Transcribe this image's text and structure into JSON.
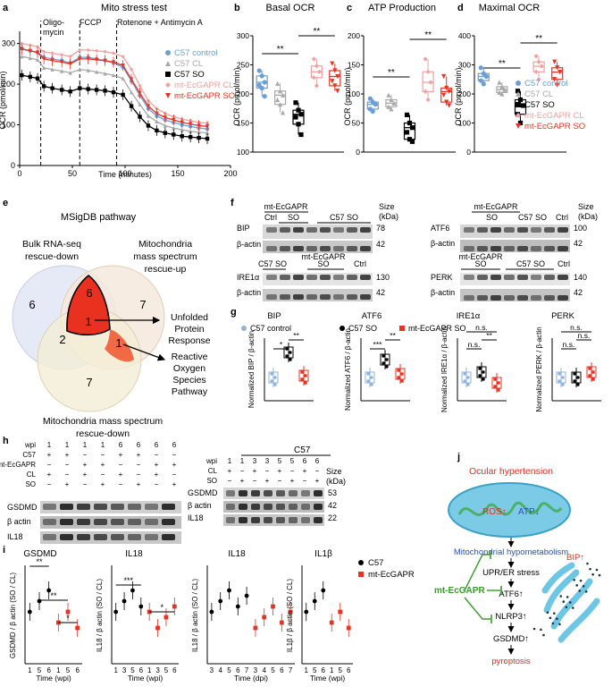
{
  "panels": {
    "a": {
      "letter": "a",
      "title": "Mito stress test",
      "phases": [
        "Oligo-",
        "mycin",
        "FCCP",
        "Rotenone + Antimycin A"
      ],
      "ylabel": "OCR (pmol/min)",
      "xlabel": "Time (minutes)",
      "yticks": [
        "0",
        "100",
        "200",
        "300"
      ],
      "xticks": [
        "0",
        "50",
        "100",
        "150",
        "200"
      ],
      "legend": [
        "C57 control",
        "C57 CL",
        "C57 SO",
        "mt-EcGAPR CL",
        "mt-EcGAPR SO"
      ]
    },
    "b": {
      "letter": "b",
      "title": "Basal OCR",
      "ylabel": "OCR (pmol/min)",
      "yticks": [
        "100",
        "150",
        "200",
        "250",
        "300"
      ],
      "sig": [
        "**",
        "**"
      ]
    },
    "c": {
      "letter": "c",
      "title": "ATP Production",
      "ylabel": "OCR (pmol/min)",
      "yticks": [
        "0",
        "50",
        "100",
        "150",
        "200"
      ],
      "sig": [
        "**",
        "**"
      ]
    },
    "d": {
      "letter": "d",
      "title": "Maximal OCR",
      "ylabel": "OCR (pmol/min)",
      "yticks": [
        "0",
        "100",
        "200",
        "300",
        "400"
      ],
      "sig": [
        "**",
        "**"
      ],
      "legend": [
        "C57 control",
        "C57 CL",
        "C57 SO",
        "mt-EcGAPR CL",
        "mt-EcGAPR SO"
      ]
    },
    "e": {
      "letter": "e",
      "title": "MSigDB pathway",
      "circle1": [
        "Bulk RNA-seq",
        "rescue-down"
      ],
      "circle2": [
        "Mitochondria",
        "mass spectrum",
        "rescue-up"
      ],
      "circle3": [
        "Mitochondria mass spectrum",
        "rescue-down"
      ],
      "numbers": [
        "6",
        "6",
        "7",
        "2",
        "1",
        "1",
        "7"
      ],
      "callout1": [
        "Unfolded",
        "Protein",
        "Response"
      ],
      "callout2": [
        "Reactive",
        "Oxygen",
        "Species",
        "Pathway"
      ]
    },
    "f": {
      "letter": "f",
      "g1": "mt-EcGAPR",
      "so": "SO",
      "ctrl": "Ctrl",
      "c57so": "C57 SO",
      "size": "Size",
      "kda": "(kDa)",
      "blots": [
        "BIP",
        "β-actin",
        "IRE1α",
        "β-actin",
        "ATF6",
        "β-actin",
        "PERK",
        "β-actin"
      ],
      "sizes": [
        "78",
        "42",
        "130",
        "42",
        "100",
        "42",
        "140",
        "42"
      ]
    },
    "g": {
      "letter": "g",
      "titles": [
        "BIP",
        "ATF6",
        "IRE1α",
        "PERK"
      ],
      "legend": [
        "C57 control",
        "C57 SO",
        "mt-EcGAPR SO"
      ],
      "ylabels": [
        "Normalized BIP / β-actin",
        "Normalized ATF6 / β-actin",
        "Normalized IRE1α / β-actin",
        "Normalized PERK / β-actin"
      ],
      "sig": [
        "*",
        "**",
        "***",
        "**",
        "n.s.",
        "n.s.",
        "**",
        "n.s.",
        "n.s.",
        "n.s."
      ]
    },
    "h": {
      "letter": "h",
      "rows": [
        "wpi",
        "C57",
        "mt-EcGAPR",
        "CL",
        "SO"
      ],
      "wpi": [
        "1",
        "1",
        "1",
        "1",
        "6",
        "6",
        "6",
        "6"
      ],
      "blots": [
        "GSDMD",
        "β actin",
        "IL18"
      ],
      "c57": "C57",
      "rows2": [
        "wpi",
        "CL",
        "SO"
      ],
      "wpi2": [
        "1",
        "1",
        "3",
        "3",
        "5",
        "5",
        "6",
        "6"
      ],
      "sizes": [
        "53",
        "42",
        "22"
      ],
      "size": "Size",
      "kda": "(kDa)"
    },
    "i": {
      "letter": "i",
      "titles": [
        "GSDMD",
        "IL18",
        "IL18",
        "IL1β"
      ],
      "ylabels": [
        "GSDMD / β actin (SO / CL)",
        "IL18 / β actin (SO / CL)",
        "IL18 / β actin (SO / CL)",
        "IL1β / β actin (SO / CL)"
      ],
      "xlabels": [
        "Time (wpi)",
        "Time (wpi)",
        "Time (dpi)",
        "Time (wpi)"
      ],
      "legend": [
        "C57",
        "mt-EcGAPR"
      ],
      "sig": [
        "**",
        "**",
        "*",
        "***",
        "*"
      ],
      "xt1": [
        "1",
        "5",
        "6",
        "1",
        "5",
        "6"
      ],
      "xt2": [
        "1",
        "3",
        "5",
        "6",
        "1",
        "3",
        "5",
        "6"
      ],
      "xt3": [
        "3",
        "4",
        "5",
        "6",
        "7",
        "3",
        "4",
        "5",
        "6",
        "7"
      ],
      "xt4": [
        "1",
        "5",
        "6",
        "1",
        "5",
        "6"
      ]
    },
    "j": {
      "letter": "j",
      "top": "Ocular hypertension",
      "ros": "ROS↑",
      "atp": "ATP↓",
      "hypo": "Mitochondrial hypometabolism",
      "upr": "UPR/ER stress",
      "atf6": "ATF6↑",
      "nlrp3": "NLRP3↑",
      "gsdmd": "GSDMD↑",
      "pyro": "pyroptosis",
      "bip": "BIP↑",
      "gapr": "mt-EcGAPR"
    }
  },
  "chart_data": [
    {
      "type": "line",
      "title": "Mito stress test",
      "xlabel": "Time (minutes)",
      "ylabel": "OCR (pmol/min)",
      "xlim": [
        0,
        200
      ],
      "ylim": [
        0,
        330
      ],
      "x": [
        2,
        10,
        17,
        23,
        31,
        40,
        48,
        57,
        65,
        73,
        81,
        89,
        98,
        106,
        114,
        122,
        130,
        138,
        146,
        154,
        162,
        170,
        178
      ],
      "series": [
        {
          "name": "C57 control",
          "values": [
            288,
            282,
            278,
            266,
            262,
            258,
            252,
            266,
            266,
            262,
            258,
            252,
            242,
            208,
            172,
            140,
            122,
            112,
            106,
            100,
            96,
            92,
            90
          ]
        },
        {
          "name": "C57 CL",
          "values": [
            268,
            264,
            260,
            240,
            236,
            232,
            228,
            236,
            234,
            230,
            226,
            222,
            214,
            180,
            150,
            122,
            108,
            98,
            92,
            88,
            84,
            82,
            80
          ]
        },
        {
          "name": "C57 SO",
          "values": [
            222,
            218,
            214,
            195,
            190,
            186,
            182,
            190,
            188,
            186,
            184,
            180,
            174,
            146,
            120,
            98,
            86,
            80,
            76,
            72,
            70,
            68,
            66
          ]
        },
        {
          "name": "mt-EcGAPR CL",
          "values": [
            300,
            296,
            292,
            280,
            276,
            272,
            268,
            284,
            284,
            282,
            280,
            276,
            268,
            236,
            196,
            160,
            140,
            128,
            120,
            114,
            110,
            106,
            104
          ]
        },
        {
          "name": "mt-EcGAPR SO",
          "values": [
            286,
            282,
            278,
            262,
            258,
            254,
            250,
            262,
            262,
            260,
            258,
            254,
            246,
            212,
            178,
            146,
            128,
            118,
            112,
            106,
            102,
            98,
            96
          ]
        }
      ]
    },
    {
      "type": "box",
      "title": "Basal OCR",
      "ylabel": "OCR (pmol/min)",
      "ylim": [
        100,
        300
      ],
      "series": [
        {
          "name": "C57 control",
          "values": [
            240,
            231,
            220,
            215,
            210,
            196
          ]
        },
        {
          "name": "C57 CL",
          "values": [
            218,
            205,
            198,
            190,
            182,
            168
          ]
        },
        {
          "name": "C57 SO",
          "values": [
            185,
            172,
            165,
            160,
            148,
            130
          ]
        },
        {
          "name": "mt-EcGAPR CL",
          "values": [
            260,
            248,
            238,
            228,
            214
          ]
        },
        {
          "name": "mt-EcGAPR SO",
          "values": [
            252,
            240,
            230,
            222,
            214,
            205
          ]
        }
      ]
    },
    {
      "type": "box",
      "title": "ATP Production",
      "ylabel": "OCR (pmol/min)",
      "ylim": [
        0,
        200
      ],
      "series": [
        {
          "name": "C57 control",
          "values": [
            92,
            86,
            82,
            74,
            70
          ]
        },
        {
          "name": "C57 CL",
          "values": [
            98,
            90,
            84,
            78,
            74
          ]
        },
        {
          "name": "C57 SO",
          "values": [
            64,
            50,
            42,
            34,
            22,
            18
          ]
        },
        {
          "name": "mt-EcGAPR CL",
          "values": [
            160,
            138,
            120,
            104,
            90
          ]
        },
        {
          "name": "mt-EcGAPR SO",
          "values": [
            130,
            110,
            104,
            98,
            86,
            80
          ]
        }
      ]
    },
    {
      "type": "box",
      "title": "Maximal OCR",
      "ylabel": "OCR (pmol/min)",
      "ylim": [
        0,
        400
      ],
      "series": [
        {
          "name": "C57 control",
          "values": [
            290,
            270,
            260,
            246,
            234
          ]
        },
        {
          "name": "C57 CL",
          "values": [
            240,
            225,
            215,
            205,
            200
          ]
        },
        {
          "name": "C57 SO",
          "values": [
            210,
            180,
            160,
            130,
            100
          ]
        },
        {
          "name": "mt-EcGAPR CL",
          "values": [
            330,
            310,
            295,
            276,
            250
          ]
        },
        {
          "name": "mt-EcGAPR SO",
          "values": [
            310,
            290,
            275,
            250,
            230
          ]
        }
      ]
    }
  ]
}
